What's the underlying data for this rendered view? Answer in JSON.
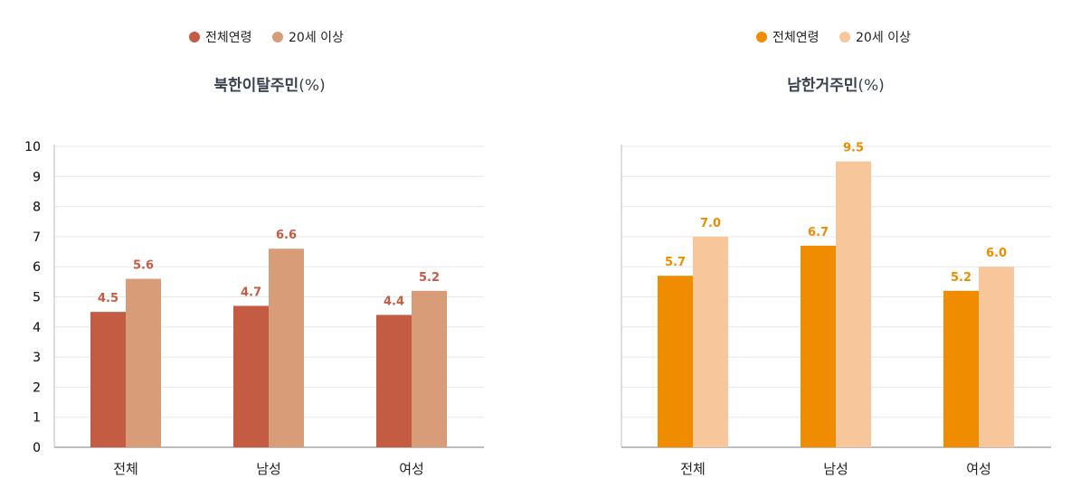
{
  "chart_data": [
    {
      "type": "bar",
      "title": "북한이탈주민",
      "title_unit": "(%)",
      "categories": [
        "전체",
        "남성",
        "여성"
      ],
      "series": [
        {
          "name": "전체연령",
          "values": [
            4.5,
            4.7,
            4.4
          ],
          "color": "#c45c43"
        },
        {
          "name": "20세 이상",
          "values": [
            5.6,
            6.6,
            5.2
          ],
          "color": "#d99c79"
        }
      ],
      "value_label_color": "#c45c43",
      "ylim": [
        0,
        10
      ],
      "yticks": [
        0,
        1,
        2,
        3,
        4,
        5,
        6,
        7,
        8,
        9,
        10
      ],
      "grid": true,
      "legend": "top-center"
    },
    {
      "type": "bar",
      "title": "남한거주민",
      "title_unit": "(%)",
      "categories": [
        "전체",
        "남성",
        "여성"
      ],
      "series": [
        {
          "name": "전체연령",
          "values": [
            5.7,
            6.7,
            5.2
          ],
          "color": "#ef8c00"
        },
        {
          "name": "20세 이상",
          "values": [
            7.0,
            9.5,
            6.0
          ],
          "color": "#f7c69a"
        }
      ],
      "value_label_color": "#ef8c00",
      "ylim": [
        0,
        10
      ],
      "yticks": [
        0,
        1,
        2,
        3,
        4,
        5,
        6,
        7,
        8,
        9,
        10
      ],
      "grid": true,
      "legend": "top-center"
    }
  ]
}
